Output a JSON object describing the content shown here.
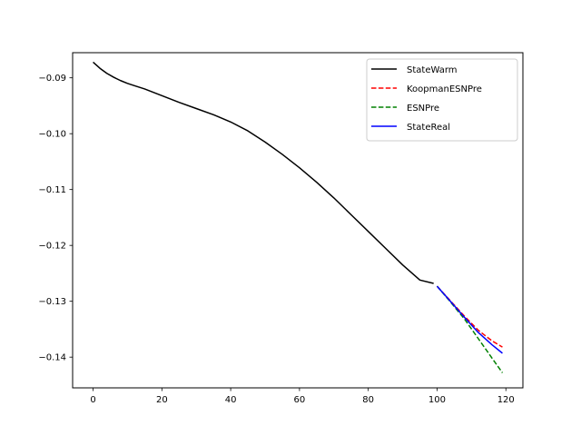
{
  "chart_data": {
    "type": "line",
    "title": "",
    "xlabel": "",
    "ylabel": "",
    "xlim": [
      -5.95,
      124.95
    ],
    "ylim": [
      -0.1455,
      -0.0855
    ],
    "xticks": [
      0,
      20,
      40,
      60,
      80,
      100,
      120
    ],
    "yticks": [
      -0.14,
      -0.13,
      -0.12,
      -0.11,
      -0.1,
      -0.09
    ],
    "xtick_labels": [
      "0",
      "20",
      "40",
      "60",
      "80",
      "100",
      "120"
    ],
    "ytick_labels": [
      "−0.14",
      "−0.13",
      "−0.12",
      "−0.11",
      "−0.10",
      "−0.09"
    ],
    "grid": false,
    "legend_position": "top-right",
    "series": [
      {
        "name": "StateWarm",
        "color": "#000000",
        "style": "solid",
        "x": [
          0,
          2,
          4,
          6,
          8,
          10,
          12,
          15,
          20,
          25,
          30,
          35,
          40,
          45,
          50,
          55,
          60,
          65,
          70,
          75,
          80,
          85,
          90,
          95,
          99
        ],
        "y": [
          -0.0872,
          -0.0883,
          -0.0892,
          -0.0899,
          -0.0905,
          -0.091,
          -0.0914,
          -0.092,
          -0.0932,
          -0.0944,
          -0.0955,
          -0.0966,
          -0.0979,
          -0.0995,
          -0.1015,
          -0.1037,
          -0.1061,
          -0.1087,
          -0.1115,
          -0.1145,
          -0.1175,
          -0.1205,
          -0.1235,
          -0.1262,
          -0.1268
        ]
      },
      {
        "name": "KoopmanESNPre",
        "color": "#ff0000",
        "style": "dashed",
        "x": [
          100,
          104,
          108,
          112,
          116,
          119
        ],
        "y": [
          -0.1273,
          -0.13,
          -0.1327,
          -0.1352,
          -0.1371,
          -0.1382
        ]
      },
      {
        "name": "ESNPre",
        "color": "#008000",
        "style": "dashed",
        "x": [
          100,
          104,
          108,
          112,
          116,
          119
        ],
        "y": [
          -0.1273,
          -0.1302,
          -0.1332,
          -0.1367,
          -0.1402,
          -0.1428
        ]
      },
      {
        "name": "StateReal",
        "color": "#0000ff",
        "style": "solid",
        "x": [
          100,
          104,
          108,
          112,
          116,
          119
        ],
        "y": [
          -0.1273,
          -0.1301,
          -0.1329,
          -0.1356,
          -0.1378,
          -0.1393
        ]
      }
    ]
  }
}
